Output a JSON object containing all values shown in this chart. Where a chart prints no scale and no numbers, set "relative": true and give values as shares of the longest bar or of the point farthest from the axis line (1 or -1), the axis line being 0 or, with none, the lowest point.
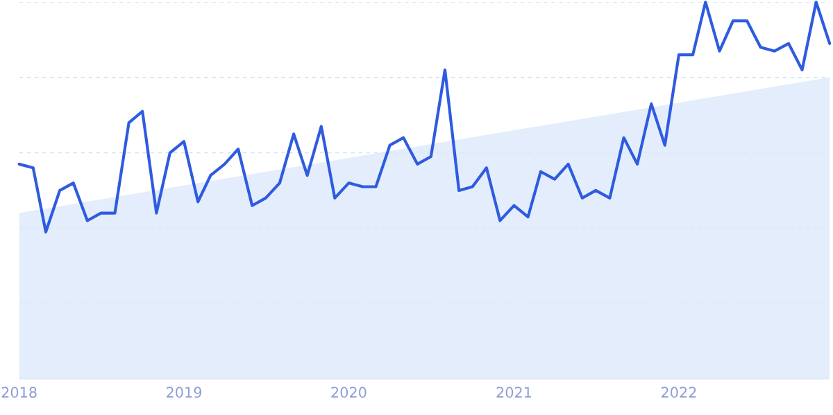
{
  "chart_data": {
    "type": "line",
    "relative": true,
    "ref_lines": [
      {
        "axis": "y",
        "value": 0.2,
        "color": "#c9e6f2",
        "line_style": "dashed"
      },
      {
        "axis": "y",
        "value": 0.4,
        "color": "#c9e6f2",
        "line_style": "dashed"
      },
      {
        "axis": "y",
        "value": 0.6,
        "color": "#c9e6f2",
        "line_style": "dashed"
      },
      {
        "axis": "y",
        "value": 0.8,
        "color": "#c9e6f2",
        "line_style": "dashed"
      },
      {
        "axis": "y",
        "value": 1,
        "color": "#c9e6f2",
        "line_style": "dashed"
      }
    ],
    "x": [
      "2018-01",
      "2018-02",
      "2018-03",
      "2018-04",
      "2018-05",
      "2018-06",
      "2018-07",
      "2018-08",
      "2018-09",
      "2018-10",
      "2018-11",
      "2018-12",
      "2019-01",
      "2019-02",
      "2019-03",
      "2019-04",
      "2019-05",
      "2019-06",
      "2019-07",
      "2019-08",
      "2019-09",
      "2019-10",
      "2019-11",
      "2019-12",
      "2020-01",
      "2020-02",
      "2020-03",
      "2020-04",
      "2020-05",
      "2020-06",
      "2020-07",
      "2020-08",
      "2020-09",
      "2020-10",
      "2020-11",
      "2020-12",
      "2021-01",
      "2021-02",
      "2021-03",
      "2021-04",
      "2021-05",
      "2021-06",
      "2021-07",
      "2021-08",
      "2021-09",
      "2021-10",
      "2021-11",
      "2021-12",
      "2022-01",
      "2022-02",
      "2022-03",
      "2022-04",
      "2022-05",
      "2022-06",
      "2022-07",
      "2022-08",
      "2022-09",
      "2022-10",
      "2022-11",
      "2022-12"
    ],
    "xlim": [
      "2018-01",
      "2022-12"
    ],
    "xticks": [
      {
        "value": "2018-01",
        "label": "2018"
      },
      {
        "value": "2019-01",
        "label": "2019"
      },
      {
        "value": "2020-01",
        "label": "2020"
      },
      {
        "value": "2021-01",
        "label": "2021"
      },
      {
        "value": "2022-01",
        "label": "2022"
      }
    ],
    "series": [
      {
        "type": "area",
        "color": "#dce9fb",
        "x": [
          "2018-01",
          "2022-12"
        ],
        "values": [
          0.44,
          0.8
        ]
      },
      {
        "color": "#2f5be0",
        "values": [
          0.57,
          0.56,
          0.39,
          0.5,
          0.52,
          0.42,
          0.44,
          0.44,
          0.68,
          0.71,
          0.44,
          0.6,
          0.63,
          0.47,
          0.54,
          0.57,
          0.61,
          0.46,
          0.48,
          0.52,
          0.65,
          0.54,
          0.67,
          0.48,
          0.52,
          0.51,
          0.51,
          0.62,
          0.64,
          0.57,
          0.59,
          0.82,
          0.5,
          0.51,
          0.56,
          0.42,
          0.46,
          0.43,
          0.55,
          0.53,
          0.57,
          0.48,
          0.5,
          0.48,
          0.64,
          0.57,
          0.73,
          0.62,
          0.86,
          0.86,
          1,
          0.87,
          0.95,
          0.95,
          0.88,
          0.87,
          0.89,
          0.82,
          1,
          0.89
        ]
      }
    ]
  }
}
